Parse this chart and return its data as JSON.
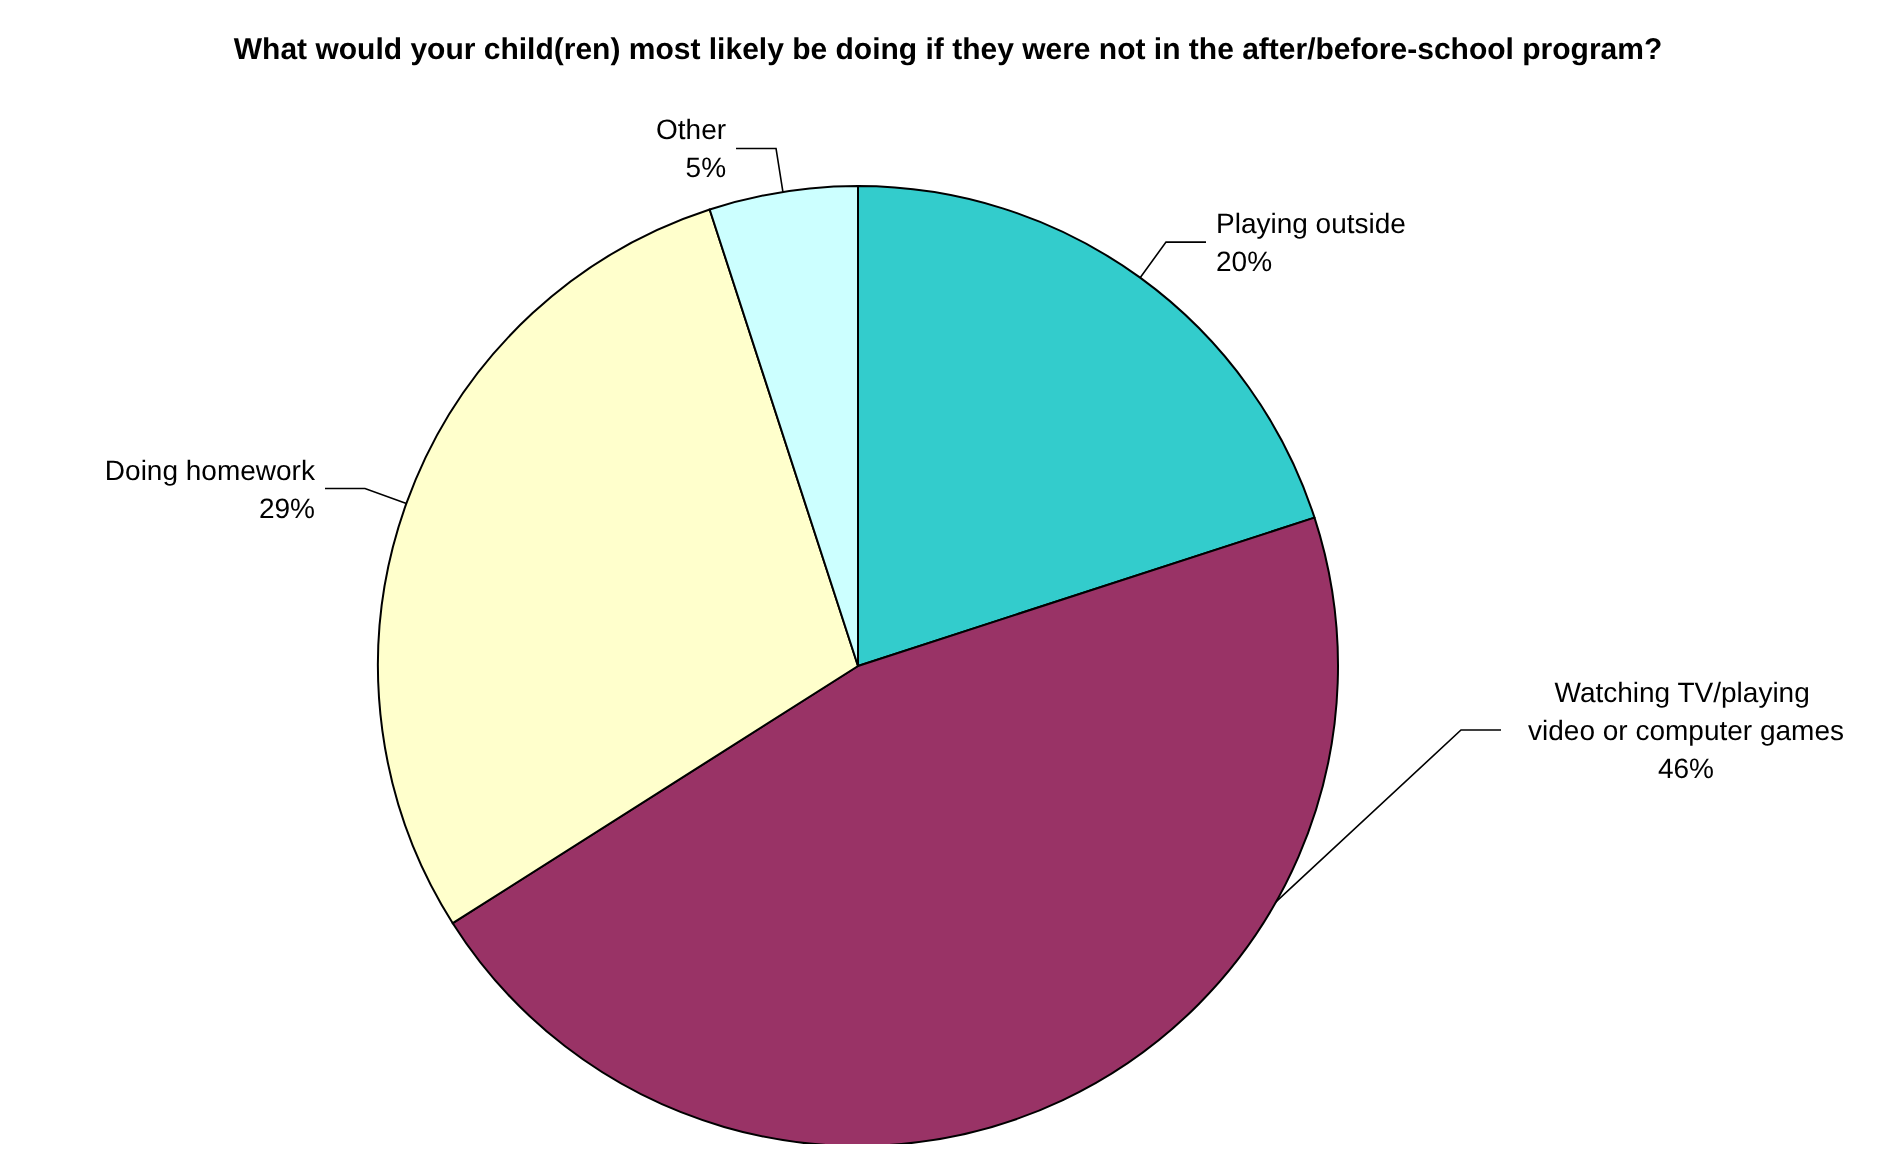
{
  "chart_data": {
    "type": "pie",
    "title": "What would your child(ren) most likely be doing if they were not in the after/before-school program?",
    "categories": [
      "Playing outside",
      "Watching TV/playing video or computer games",
      "Doing homework",
      "Other"
    ],
    "values": [
      20,
      46,
      29,
      5
    ],
    "colors": [
      "#33cccc",
      "#993366",
      "#ffffcc",
      "#ccffff"
    ],
    "value_labels": [
      "20%",
      "46%",
      "29%",
      "5%"
    ],
    "legend": false
  }
}
